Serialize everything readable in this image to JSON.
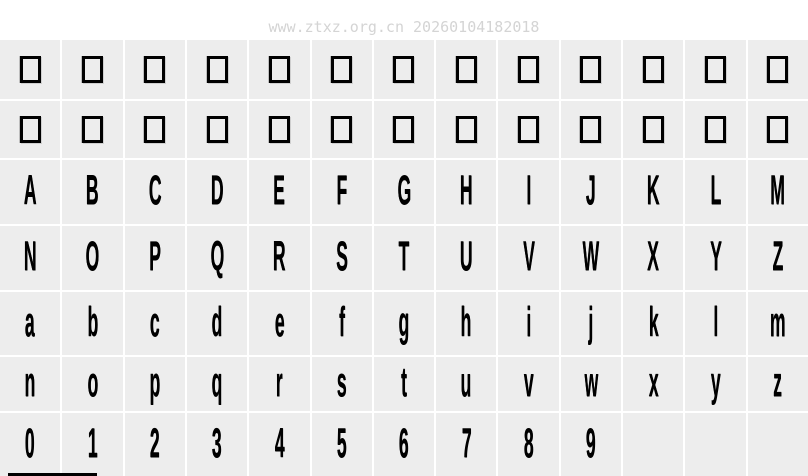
{
  "watermark": "www.ztxz.org.cn 20260104182018",
  "colors": {
    "page_bg": "#ffffff",
    "cell_bg": "#ededed",
    "grid_gap": "#ffffff",
    "glyph": "#000000",
    "watermark": "#d4d4d4"
  },
  "glyph_grid": {
    "columns": 13,
    "rows": [
      {
        "type": "notdef",
        "label": "missing-glyph-row-1"
      },
      {
        "type": "notdef",
        "label": "missing-glyph-row-2"
      },
      {
        "type": "chars",
        "cells": [
          "A",
          "B",
          "C",
          "D",
          "E",
          "F",
          "G",
          "H",
          "I",
          "J",
          "K",
          "L",
          "M"
        ]
      },
      {
        "type": "chars",
        "cells": [
          "N",
          "O",
          "P",
          "Q",
          "R",
          "S",
          "T",
          "U",
          "V",
          "W",
          "X",
          "Y",
          "Z"
        ]
      },
      {
        "type": "chars",
        "cells": [
          "a",
          "b",
          "c",
          "d",
          "e",
          "f",
          "g",
          "h",
          "i",
          "j",
          "k",
          "l",
          "m"
        ]
      },
      {
        "type": "chars",
        "cells": [
          "n",
          "o",
          "p",
          "q",
          "r",
          "s",
          "t",
          "u",
          "v",
          "w",
          "x",
          "y",
          "z"
        ]
      },
      {
        "type": "chars",
        "cells": [
          "0",
          "1",
          "2",
          "3",
          "4",
          "5",
          "6",
          "7",
          "8",
          "9",
          "",
          "",
          ""
        ]
      }
    ]
  }
}
